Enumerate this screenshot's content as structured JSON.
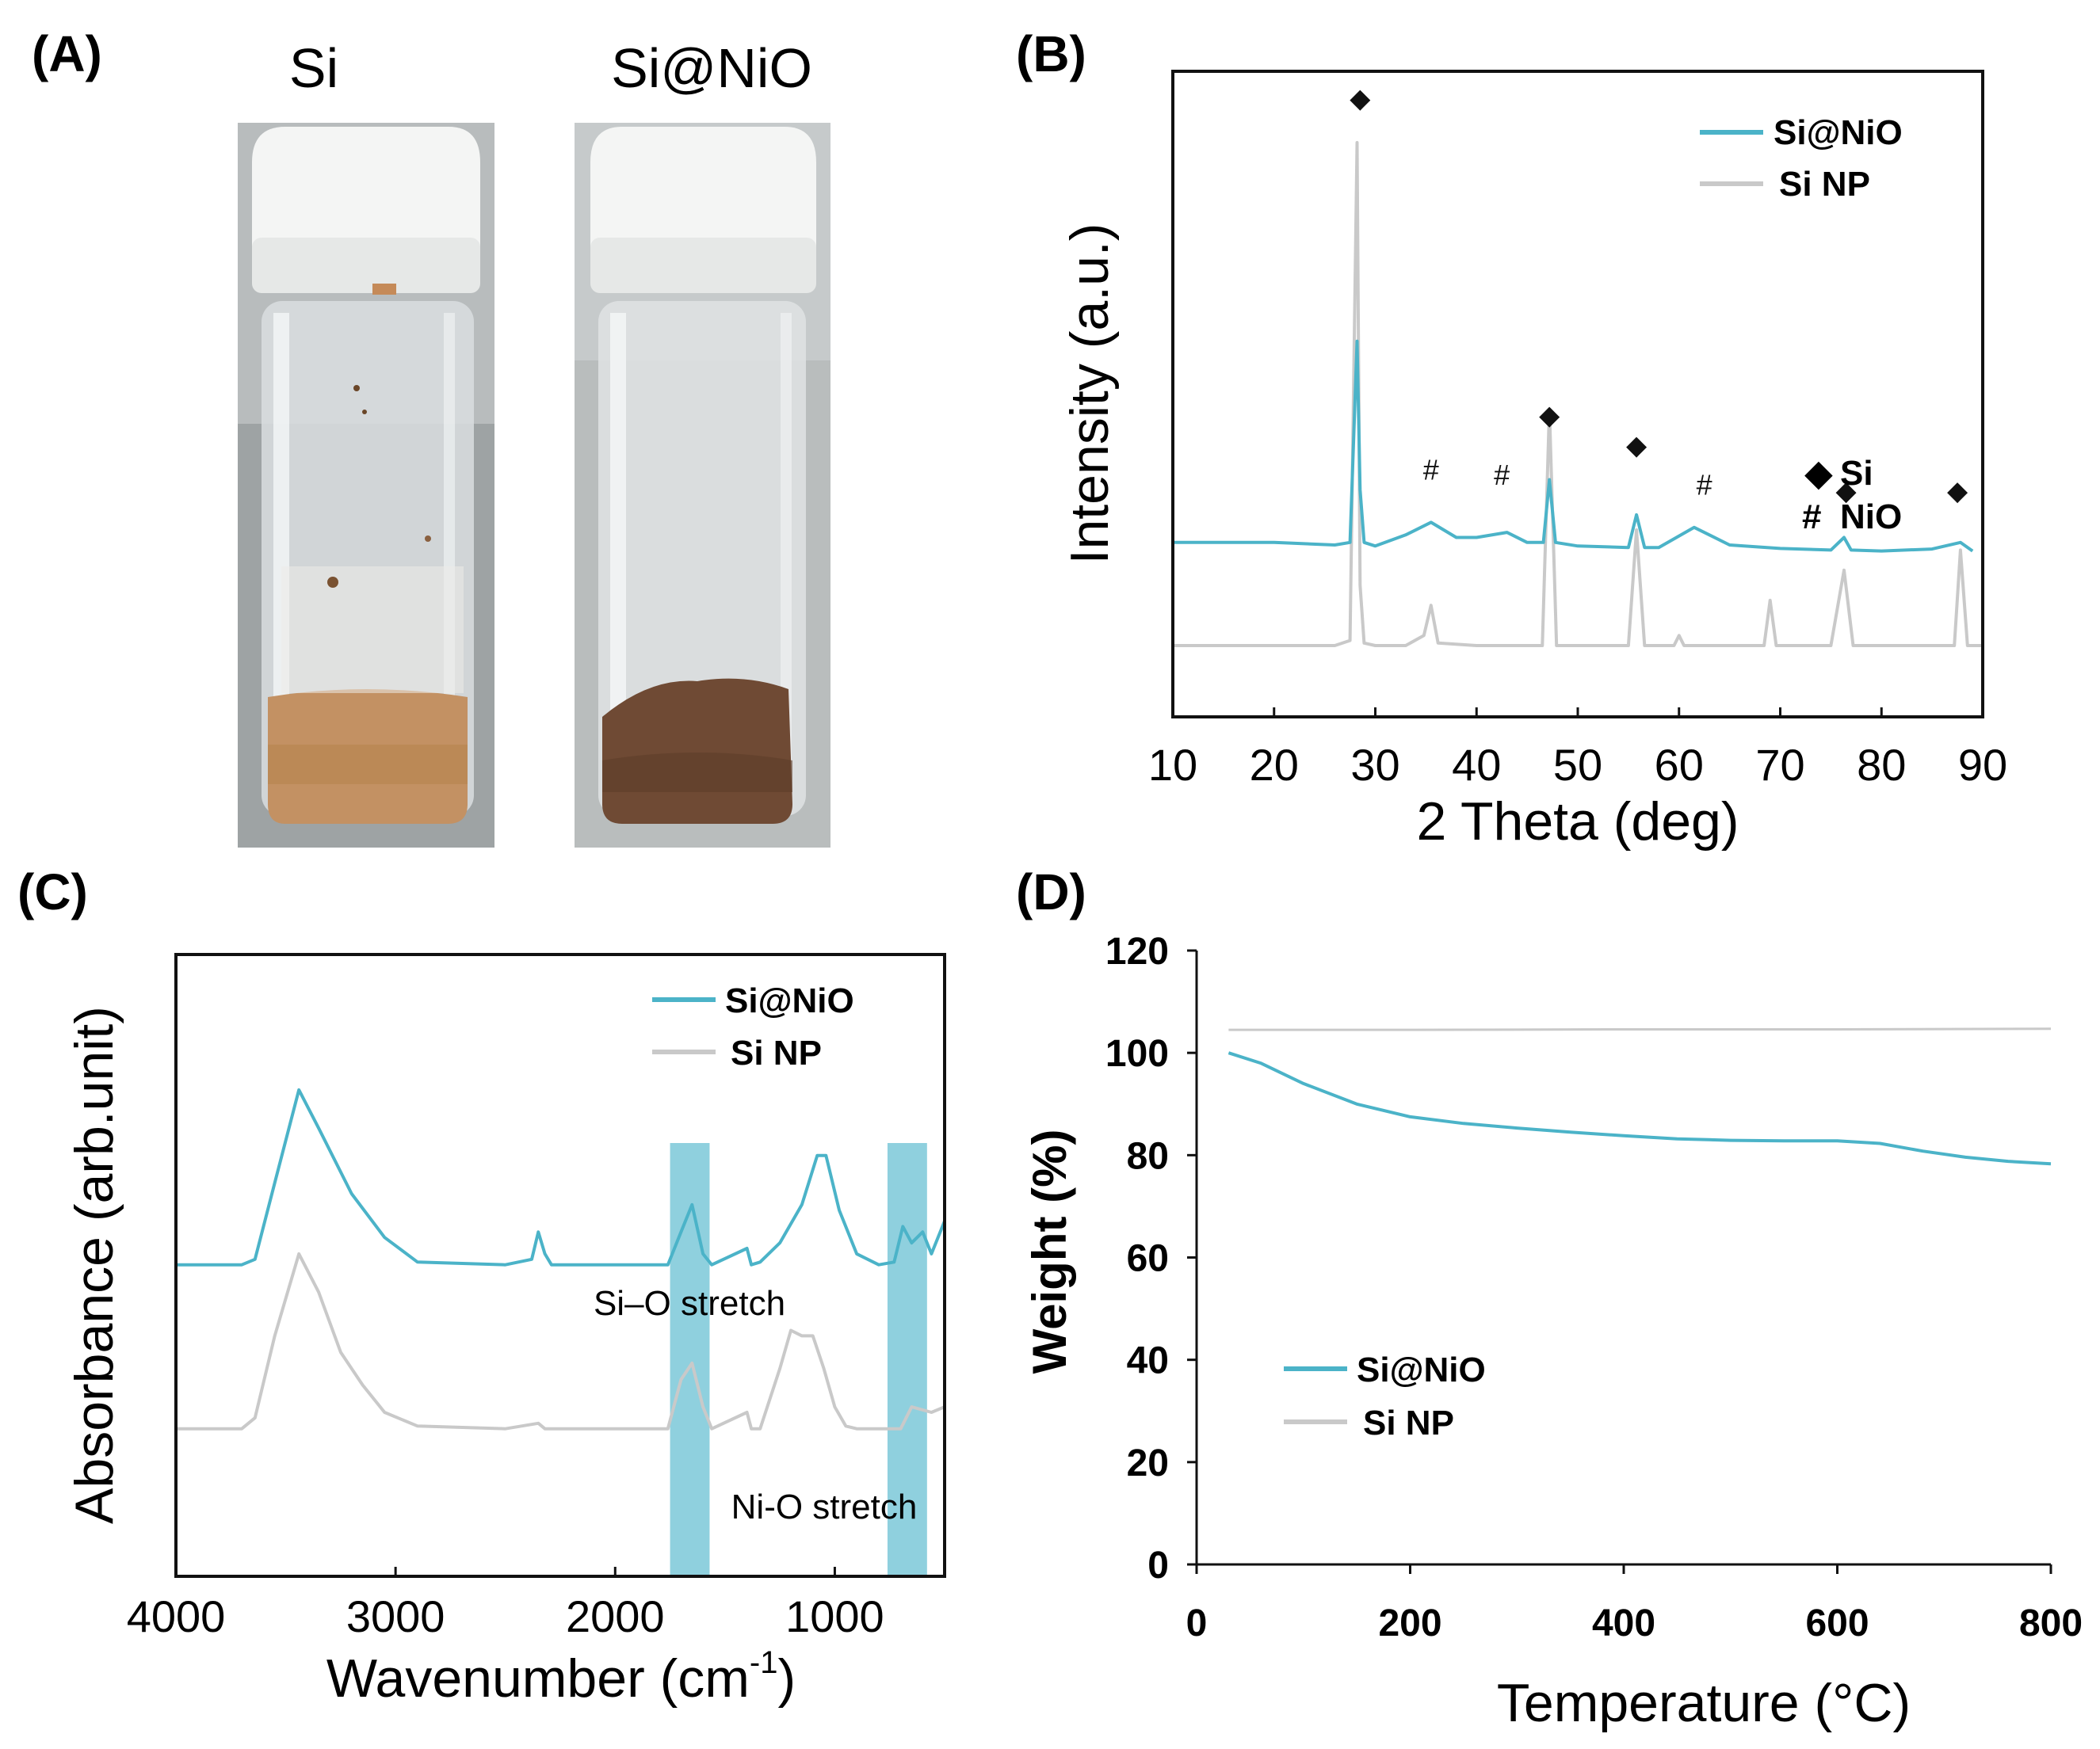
{
  "colors": {
    "si_nio": "#4bb3c8",
    "si_np": "#c9c9c9",
    "band": "#8fd0de",
    "axis": "#111111"
  },
  "panel_a": {
    "letter": "(A)",
    "vial1_caption": "Si",
    "vial2_caption": "Si@NiO",
    "vial1_powder": "tan-brown powder",
    "vial2_powder": "dark-brown powder"
  },
  "chart_data": [
    {
      "panel": "(B)",
      "type": "line",
      "xlabel": "2 Theta (deg)",
      "ylabel": "Intensity (a.u.)",
      "xlim": [
        10,
        90
      ],
      "xticks": [
        10,
        20,
        30,
        40,
        50,
        60,
        70,
        80,
        90
      ],
      "yticks": [],
      "legend_position": "top-right",
      "series": [
        {
          "name": "Si@NiO",
          "color": "#4bb3c8",
          "x": [
            10,
            20,
            26,
            27.5,
            28.2,
            28.5,
            28.9,
            30,
            33,
            35.5,
            38,
            40,
            43,
            45,
            46.6,
            47.2,
            47.8,
            50,
            55,
            55.8,
            56.6,
            58,
            61.5,
            65,
            70,
            75,
            76.3,
            77,
            80,
            85,
            87.8,
            89
          ],
          "y": [
            20.5,
            20.5,
            20,
            20.5,
            60.5,
            31,
            20.5,
            19.8,
            22,
            24.5,
            21.5,
            21.5,
            22.5,
            20.5,
            20.5,
            33,
            20.5,
            19.8,
            19.5,
            26,
            19.5,
            19.5,
            23.5,
            20,
            19.3,
            19,
            21.5,
            19,
            18.8,
            19.2,
            20.5,
            18.8
          ]
        },
        {
          "name": "Si NP",
          "color": "#c9c9c9",
          "x": [
            10,
            20,
            26,
            27.5,
            28.2,
            28.5,
            28.9,
            30,
            33,
            34.8,
            35.5,
            36.2,
            40,
            46.5,
            47.2,
            47.9,
            50,
            55,
            55.8,
            56.6,
            59.5,
            60,
            60.5,
            68.4,
            69,
            69.6,
            75,
            76.3,
            77.2,
            80,
            87.2,
            87.8,
            88.5,
            90
          ],
          "y": [
            0,
            0,
            0,
            1,
            100,
            12,
            0.5,
            0,
            0,
            2,
            8,
            0.5,
            0,
            0,
            47,
            0,
            0,
            0,
            23,
            0,
            0,
            2,
            0,
            0,
            9,
            0,
            0,
            15,
            0,
            0,
            0,
            19,
            0,
            0
          ]
        }
      ],
      "annotations": [
        {
          "text": "◆",
          "x": 28.5,
          "y": 107,
          "label": "Si"
        },
        {
          "text": "#",
          "x": 35.5,
          "y": 33,
          "label": "NiO"
        },
        {
          "text": "#",
          "x": 42.5,
          "y": 32,
          "label": "NiO"
        },
        {
          "text": "◆",
          "x": 47.2,
          "y": 44,
          "label": "Si"
        },
        {
          "text": "◆",
          "x": 55.8,
          "y": 38,
          "label": "Si"
        },
        {
          "text": "#",
          "x": 62.5,
          "y": 30,
          "label": "NiO"
        },
        {
          "text": "◆",
          "x": 76.5,
          "y": 29,
          "label": "Si"
        },
        {
          "text": "◆",
          "x": 87.5,
          "y": 29,
          "label": "Si"
        }
      ],
      "marker_key": [
        {
          "symbol": "◆",
          "label": "Si"
        },
        {
          "symbol": "#",
          "label": "NiO"
        }
      ]
    },
    {
      "panel": "(C)",
      "type": "line",
      "xlabel": "Wavenumber (cm",
      "xlabel_sup": "-1",
      "xlabel_close": ")",
      "ylabel": "Absorbance (arb.unit)",
      "xlim": [
        4000,
        500
      ],
      "xticks": [
        4000,
        3000,
        2000,
        1000
      ],
      "yticks": [],
      "legend_position": "top-right",
      "series": [
        {
          "name": "Si@NiO",
          "color": "#4bb3c8",
          "x": [
            4000,
            3700,
            3640,
            3550,
            3440,
            3350,
            3200,
            3050,
            2900,
            2500,
            2380,
            2350,
            2320,
            2290,
            2000,
            1760,
            1700,
            1650,
            1600,
            1560,
            1400,
            1380,
            1340,
            1250,
            1150,
            1080,
            1040,
            980,
            900,
            800,
            730,
            690,
            650,
            600,
            560,
            500
          ],
          "y": [
            57,
            57,
            58,
            72,
            89,
            82,
            70,
            62,
            57.5,
            57,
            58,
            63,
            59,
            57,
            57,
            57,
            63,
            68,
            59,
            57,
            60,
            57,
            57.5,
            61,
            68,
            77,
            77,
            67,
            59,
            57,
            57.5,
            64,
            61,
            63,
            59,
            65
          ]
        },
        {
          "name": "Si NP",
          "color": "#c9c9c9",
          "x": [
            4000,
            3700,
            3640,
            3550,
            3440,
            3350,
            3250,
            3150,
            3050,
            2900,
            2500,
            2350,
            2320,
            2000,
            1760,
            1700,
            1650,
            1600,
            1560,
            1400,
            1380,
            1340,
            1250,
            1200,
            1150,
            1100,
            1050,
            1000,
            950,
            900,
            700,
            650,
            560,
            500
          ],
          "y": [
            27,
            27,
            29,
            44,
            59,
            52,
            41,
            35,
            30,
            27.5,
            27,
            28,
            27,
            27,
            27,
            36,
            39,
            31,
            27,
            30,
            27,
            27,
            38,
            45,
            44,
            44,
            38,
            31,
            27.5,
            27,
            27,
            31,
            30,
            31
          ]
        }
      ],
      "bands": [
        {
          "from": 1750,
          "to": 1570,
          "label": "Si–O stretch"
        },
        {
          "from": 760,
          "to": 580,
          "label": "Ni-O stretch"
        }
      ]
    },
    {
      "panel": "(D)",
      "type": "line",
      "xlabel": "Temperature (°C)",
      "ylabel": "Weight (%)",
      "xlim": [
        0,
        800
      ],
      "ylim": [
        0,
        120
      ],
      "xticks": [
        0,
        200,
        400,
        600,
        800
      ],
      "yticks": [
        0,
        20,
        40,
        60,
        80,
        100,
        120
      ],
      "legend_position": "bottom-left",
      "series": [
        {
          "name": "Si@NiO",
          "color": "#4bb3c8",
          "x": [
            30,
            60,
            100,
            150,
            200,
            250,
            300,
            350,
            400,
            450,
            500,
            550,
            600,
            640,
            680,
            720,
            760,
            800
          ],
          "y": [
            100,
            98,
            94,
            90,
            87.5,
            86.2,
            85.3,
            84.5,
            83.8,
            83.2,
            82.9,
            82.8,
            82.8,
            82.3,
            80.8,
            79.6,
            78.8,
            78.3
          ]
        },
        {
          "name": "Si NP",
          "color": "#c9c9c9",
          "x": [
            30,
            200,
            400,
            600,
            800
          ],
          "y": [
            104.5,
            104.5,
            104.6,
            104.6,
            104.7
          ]
        }
      ]
    }
  ]
}
